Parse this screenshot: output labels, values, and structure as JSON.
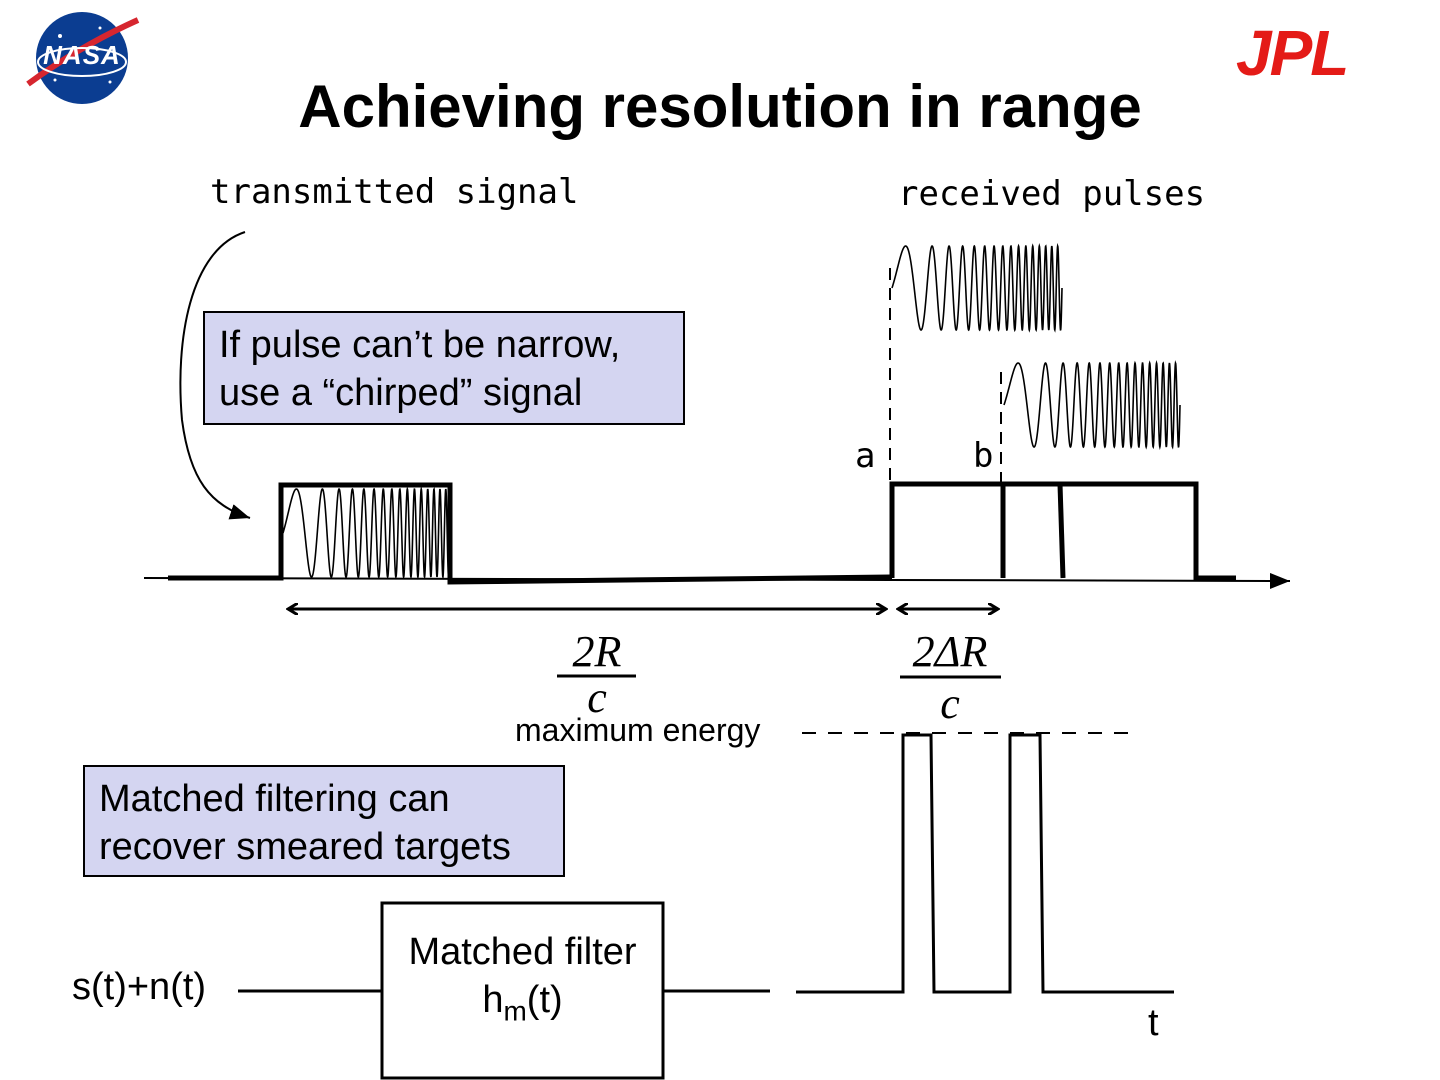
{
  "title": "Achieving resolution in range",
  "logos": {
    "left_text": "NASA",
    "right_text": "JPL",
    "right_color": "#e41b17",
    "left_color": "#0b3d91"
  },
  "labels": {
    "transmitted": "transmitted signal",
    "received": "received pulses",
    "a": "a",
    "b": "b",
    "max_energy": "maximum energy",
    "input": "s(t)+n(t)",
    "t": "t"
  },
  "boxes": {
    "chirp": [
      "If pulse can’t be narrow,",
      "use a “chirped” signal"
    ],
    "matched": [
      "Matched filtering can",
      "recover smeared targets"
    ]
  },
  "fractions": {
    "range_num": "2R",
    "range_den": "c",
    "res_num": "2ΔR",
    "res_den": "c"
  },
  "filter_block": {
    "line1": "Matched filter",
    "line2_main": "h",
    "line2_sub": "m",
    "line2_tail": "(t)"
  },
  "colors": {
    "callout_fill": "#d4d5f1"
  }
}
